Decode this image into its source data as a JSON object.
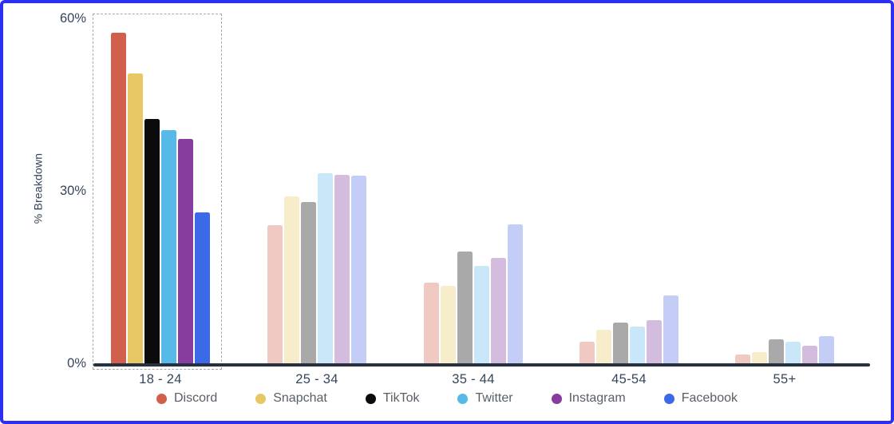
{
  "frame": {
    "border_color": "#2a2ff2"
  },
  "chart_data": {
    "type": "bar",
    "title": "",
    "xlabel": "",
    "ylabel": "% Breakdown",
    "ylim": [
      0,
      62
    ],
    "grid": false,
    "legend_position": "bottom",
    "yticks": [
      {
        "label": "0%",
        "value": 0
      },
      {
        "label": "30%",
        "value": 30
      },
      {
        "label": "60%",
        "value": 60
      }
    ],
    "categories": [
      "18 - 24",
      "25 - 34",
      "35 - 44",
      "45-54",
      "55+"
    ],
    "highlighted_category": "18 - 24",
    "series": [
      {
        "name": "Discord",
        "color": "#d0604c",
        "faded_color": "#f0c9c2",
        "values": [
          57.5,
          24.0,
          14.0,
          3.8,
          1.5
        ]
      },
      {
        "name": "Snapchat",
        "color": "#e8c765",
        "faded_color": "#f7edcb",
        "values": [
          50.4,
          29.0,
          13.5,
          5.9,
          1.9
        ]
      },
      {
        "name": "TikTok",
        "color": "#0b0b0b",
        "faded_color": "#a9a9a9",
        "values": [
          42.5,
          28.0,
          19.4,
          7.1,
          4.1
        ]
      },
      {
        "name": "Twitter",
        "color": "#57b9e8",
        "faded_color": "#c9e7f8",
        "values": [
          40.6,
          33.0,
          16.9,
          6.4,
          3.7
        ]
      },
      {
        "name": "Instagram",
        "color": "#873d9d",
        "faded_color": "#d4bcdf",
        "values": [
          39.0,
          32.8,
          18.3,
          7.5,
          3.1
        ]
      },
      {
        "name": "Facebook",
        "color": "#3c69e7",
        "faded_color": "#c4cdf6",
        "values": [
          26.2,
          32.6,
          24.1,
          11.8,
          4.7
        ]
      }
    ]
  }
}
